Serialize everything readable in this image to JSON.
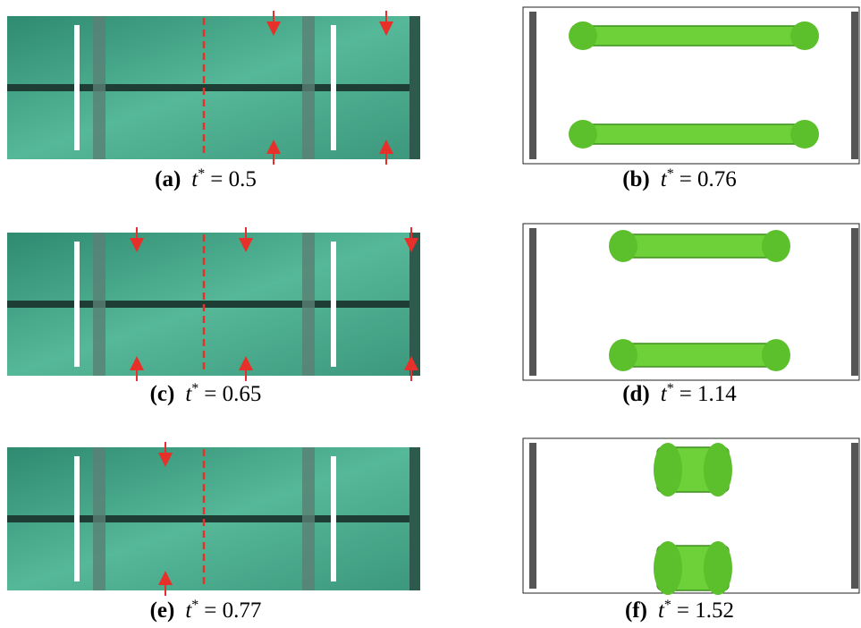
{
  "panels": [
    {
      "label": "(a)",
      "var": "t",
      "sup": "*",
      "rest": "= 0.5"
    },
    {
      "label": "(b)",
      "var": "t",
      "sup": "*",
      "rest": "= 0.76"
    },
    {
      "label": "(c)",
      "var": "t",
      "sup": "*",
      "rest": "= 0.65"
    },
    {
      "label": "(d)",
      "var": "t",
      "sup": "*",
      "rest": "= 1.14"
    },
    {
      "label": "(e)",
      "var": "t",
      "sup": "*",
      "rest": "= 0.77"
    },
    {
      "label": "(f)",
      "var": "t",
      "sup": "*",
      "rest": "= 1.52"
    }
  ]
}
